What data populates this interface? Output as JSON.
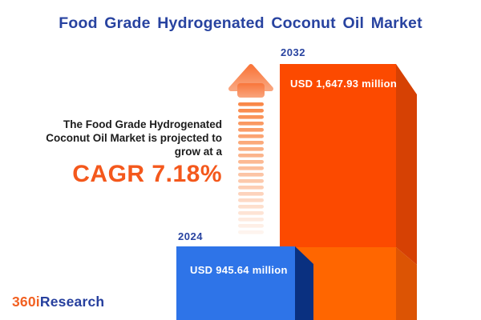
{
  "title": "Food Grade Hydrogenated Coconut Oil Market",
  "intro": {
    "lines": [
      "The Food Grade Hydrogenated",
      "Coconut Oil Market is projected to",
      "grow at a"
    ]
  },
  "cagr_label": "CAGR 7.18%",
  "bars": {
    "b2024": {
      "year": "2024",
      "value_label": "USD 945.64 million"
    },
    "b2032": {
      "year": "2032",
      "value_label": "USD 1,647.93 million"
    }
  },
  "logo": {
    "part1": "360i",
    "part2": "Research"
  },
  "colors": {
    "title_navy": "#2843A0",
    "text_dark": "#1C1C1C",
    "accent_orange": "#F4581C",
    "bar_2032_front_upper": "#FC4A00",
    "bar_2032_front_lower": "#FF6600",
    "bar_2032_side_upper": "#D64104",
    "bar_2032_side_lower": "#DC5404",
    "bar_2024_front": "#2E74E8",
    "bar_2024_side": "#0A3080",
    "arrow_orange": "#F9823F",
    "logo_orange": "#F26122",
    "logo_navy": "#27409E"
  },
  "chart_data": {
    "type": "bar",
    "categories": [
      "2024",
      "2032"
    ],
    "values": [
      945.64,
      1647.93
    ],
    "unit": "USD million",
    "value_labels": [
      "USD 945.64 million",
      "USD 1,647.93 million"
    ],
    "title": "Food Grade Hydrogenated Coconut Oil Market",
    "annotation": "The Food Grade Hydrogenated Coconut Oil Market is projected to grow at a CAGR 7.18%",
    "cagr_percent": 7.18,
    "legend": "none",
    "grid": false,
    "bar_colors": {
      "2024": "#2E74E8",
      "2032": "#FC4A00"
    }
  }
}
